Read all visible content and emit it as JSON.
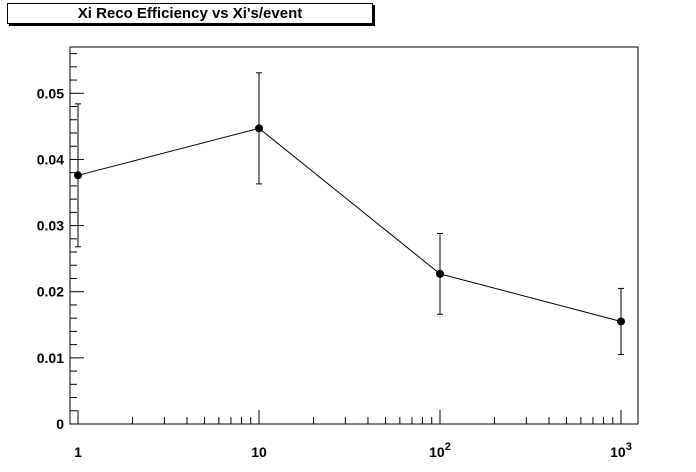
{
  "chart_data": {
    "type": "line",
    "title": "Xi Reco Efficiency vs Xi's/event",
    "x_scale": "log",
    "xlim": [
      1,
      1000
    ],
    "ylim": [
      0,
      0.057
    ],
    "x_ticks": [
      {
        "value": 1,
        "base": "1",
        "exp": ""
      },
      {
        "value": 10,
        "base": "10",
        "exp": ""
      },
      {
        "value": 100,
        "base": "10",
        "exp": "2"
      },
      {
        "value": 1000,
        "base": "10",
        "exp": "3"
      }
    ],
    "y_ticks": [
      {
        "value": 0,
        "label": "0"
      },
      {
        "value": 0.01,
        "label": "0.01"
      },
      {
        "value": 0.02,
        "label": "0.02"
      },
      {
        "value": 0.03,
        "label": "0.03"
      },
      {
        "value": 0.04,
        "label": "0.04"
      },
      {
        "value": 0.05,
        "label": "0.05"
      }
    ],
    "series": [
      {
        "x": [
          1,
          10,
          100,
          1000
        ],
        "y": [
          0.0376,
          0.0447,
          0.0227,
          0.0155
        ],
        "err": [
          0.0108,
          0.0084,
          0.0061,
          0.005
        ]
      }
    ],
    "grid": false,
    "marker_color": "#000000",
    "line_color": "#000000"
  }
}
